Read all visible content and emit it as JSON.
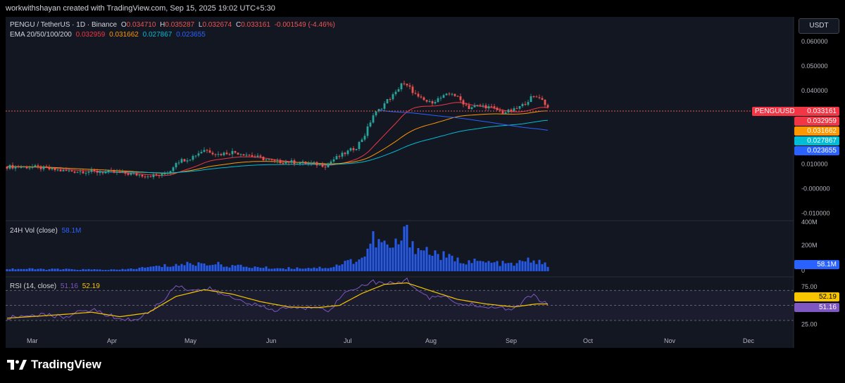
{
  "header": {
    "credit": "workwithshayan created with TradingView.com, Sep 15, 2025 19:02 UTC+5:30"
  },
  "legend": {
    "symbol": "PENGU / TetherUS · 1D · Binance",
    "o_label": "O",
    "o": "0.034710",
    "h_label": "H",
    "h": "0.035287",
    "l_label": "L",
    "l": "0.032674",
    "c_label": "C",
    "c": "0.033161",
    "change": "-0.001549 (-4.46%)",
    "ema_label": "EMA 20/50/100/200",
    "ema20": "0.032959",
    "ema50": "0.031662",
    "ema100": "0.027867",
    "ema200": "0.023655",
    "vol_label": "24H Vol (close)",
    "vol_value": "58.1M",
    "rsi_label": "RSI (14, close)",
    "rsi_value": "51.16",
    "rsi_ma": "52.19"
  },
  "toolbar": {
    "currency": "USDT"
  },
  "tags": {
    "symbol_tag": "PENGUUSDT",
    "last_price": "0.033161",
    "ema20": "0.032959",
    "ema50": "0.031662",
    "ema100": "0.027867",
    "ema200": "0.023655",
    "vol": "58.1M",
    "rsi_ma": "52.19",
    "rsi": "51.16"
  },
  "colors": {
    "up": "#26a69a",
    "down": "#ef5350",
    "ema20": "#f23645",
    "ema50": "#ff9800",
    "ema100": "#00bcd4",
    "ema200": "#2962ff",
    "vol": "#2962ff",
    "rsi": "#7e57c2",
    "rsi_ma": "#f7c600"
  },
  "footer": {
    "brand": "TradingView"
  },
  "chart_data": [
    {
      "type": "candlestick",
      "title": "PENGU / TetherUS · 1D · Binance",
      "x_labels": [
        "Mar",
        "Apr",
        "May",
        "Jun",
        "Jul",
        "Aug",
        "Sep",
        "Oct",
        "Nov",
        "Dec"
      ],
      "y_ticks": [
        "0.060000",
        "0.050000",
        "0.040000",
        "0.010000",
        "-0.000000",
        "-0.010000"
      ],
      "ylim": [
        -0.013,
        0.07
      ],
      "close_path": [
        [
          0,
          0.009
        ],
        [
          10,
          0.0088
        ],
        [
          20,
          0.0072
        ],
        [
          30,
          0.007
        ],
        [
          40,
          0.0065
        ],
        [
          50,
          0.0053
        ],
        [
          55,
          0.0055
        ],
        [
          58,
          0.0075
        ],
        [
          60,
          0.011
        ],
        [
          65,
          0.0125
        ],
        [
          70,
          0.016
        ],
        [
          75,
          0.014
        ],
        [
          80,
          0.015
        ],
        [
          85,
          0.014
        ],
        [
          90,
          0.0125
        ],
        [
          95,
          0.011
        ],
        [
          100,
          0.011
        ],
        [
          105,
          0.0105
        ],
        [
          110,
          0.01
        ],
        [
          113,
          0.0095
        ],
        [
          116,
          0.012
        ],
        [
          120,
          0.0145
        ],
        [
          124,
          0.017
        ],
        [
          127,
          0.022
        ],
        [
          130,
          0.03
        ],
        [
          132,
          0.032
        ],
        [
          135,
          0.036
        ],
        [
          138,
          0.039
        ],
        [
          140,
          0.043
        ],
        [
          143,
          0.041
        ],
        [
          146,
          0.037
        ],
        [
          150,
          0.035
        ],
        [
          154,
          0.037
        ],
        [
          158,
          0.039
        ],
        [
          161,
          0.036
        ],
        [
          164,
          0.033
        ],
        [
          168,
          0.034
        ],
        [
          172,
          0.033
        ],
        [
          176,
          0.031
        ],
        [
          180,
          0.032
        ],
        [
          183,
          0.034
        ],
        [
          186,
          0.037
        ],
        [
          189,
          0.0375
        ],
        [
          192,
          0.0332
        ]
      ],
      "last_close": 0.033161,
      "ema": {
        "ema20": 0.032959,
        "ema50": 0.031662,
        "ema100": 0.027867,
        "ema200": 0.023655
      }
    },
    {
      "type": "bar",
      "title": "24H Vol (close)",
      "y_ticks": [
        "400M",
        "200M",
        "0"
      ],
      "ylim": [
        0,
        400
      ],
      "peaks": [
        [
          0,
          25
        ],
        [
          40,
          15
        ],
        [
          58,
          60
        ],
        [
          64,
          75
        ],
        [
          72,
          80
        ],
        [
          80,
          55
        ],
        [
          96,
          30
        ],
        [
          115,
          40
        ],
        [
          120,
          90
        ],
        [
          126,
          130
        ],
        [
          130,
          320
        ],
        [
          134,
          260
        ],
        [
          137,
          230
        ],
        [
          140,
          330
        ],
        [
          142,
          380
        ],
        [
          146,
          230
        ],
        [
          150,
          200
        ],
        [
          154,
          160
        ],
        [
          160,
          110
        ],
        [
          170,
          90
        ],
        [
          180,
          70
        ],
        [
          186,
          120
        ],
        [
          192,
          58
        ]
      ],
      "last": "58.1M"
    },
    {
      "type": "line",
      "title": "RSI (14, close)",
      "y_ticks": [
        "75.00",
        "25.00"
      ],
      "ylim": [
        15,
        88
      ],
      "rsi": [
        [
          0,
          33
        ],
        [
          10,
          38
        ],
        [
          20,
          35
        ],
        [
          30,
          45
        ],
        [
          35,
          38
        ],
        [
          40,
          33
        ],
        [
          45,
          30
        ],
        [
          50,
          40
        ],
        [
          55,
          55
        ],
        [
          58,
          68
        ],
        [
          60,
          78
        ],
        [
          64,
          72
        ],
        [
          68,
          70
        ],
        [
          72,
          72
        ],
        [
          76,
          65
        ],
        [
          80,
          60
        ],
        [
          85,
          55
        ],
        [
          90,
          48
        ],
        [
          95,
          43
        ],
        [
          100,
          48
        ],
        [
          105,
          45
        ],
        [
          110,
          50
        ],
        [
          115,
          43
        ],
        [
          118,
          60
        ],
        [
          122,
          72
        ],
        [
          126,
          76
        ],
        [
          130,
          82
        ],
        [
          134,
          78
        ],
        [
          138,
          80
        ],
        [
          142,
          84
        ],
        [
          146,
          70
        ],
        [
          150,
          58
        ],
        [
          154,
          64
        ],
        [
          158,
          56
        ],
        [
          162,
          50
        ],
        [
          166,
          52
        ],
        [
          170,
          45
        ],
        [
          175,
          48
        ],
        [
          180,
          44
        ],
        [
          184,
          58
        ],
        [
          187,
          64
        ],
        [
          190,
          55
        ],
        [
          192,
          51
        ]
      ],
      "rsi_ma": [
        [
          0,
          33
        ],
        [
          20,
          38
        ],
        [
          30,
          41
        ],
        [
          40,
          35
        ],
        [
          50,
          40
        ],
        [
          60,
          62
        ],
        [
          70,
          71
        ],
        [
          80,
          65
        ],
        [
          90,
          55
        ],
        [
          100,
          48
        ],
        [
          110,
          47
        ],
        [
          118,
          50
        ],
        [
          126,
          66
        ],
        [
          134,
          78
        ],
        [
          142,
          80
        ],
        [
          150,
          70
        ],
        [
          160,
          58
        ],
        [
          170,
          52
        ],
        [
          180,
          48
        ],
        [
          188,
          52
        ],
        [
          192,
          52
        ]
      ],
      "rsi_last": "51.16",
      "ma_last": "52.19"
    }
  ]
}
